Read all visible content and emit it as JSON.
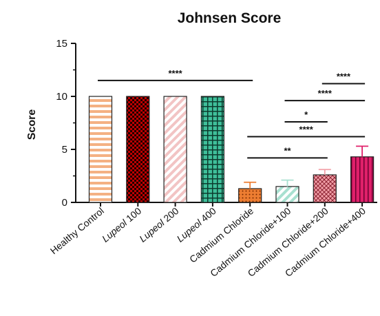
{
  "chart_data": {
    "type": "bar",
    "title": "Johnsen Score",
    "ylabel": "Score",
    "xlabel": "",
    "ylim": [
      0,
      15
    ],
    "yticks": [
      0,
      5,
      10,
      15
    ],
    "grid": false,
    "categories": [
      {
        "label": "Healthy Control",
        "italic_prefix": ""
      },
      {
        "label": "100",
        "italic_prefix": "Lupeol "
      },
      {
        "label": "200",
        "italic_prefix": "Lupeol "
      },
      {
        "label": "400",
        "italic_prefix": "Lupeol "
      },
      {
        "label": "Cadmium Chloride",
        "italic_prefix": ""
      },
      {
        "label": "Cadmium Chloride+100",
        "italic_prefix": ""
      },
      {
        "label": "Cadmium Chloride+200",
        "italic_prefix": ""
      },
      {
        "label": "Cadmium Chloride+400",
        "italic_prefix": ""
      }
    ],
    "values": [
      10,
      10,
      10,
      10,
      1.3,
      1.5,
      2.6,
      4.3
    ],
    "errors": [
      0,
      0,
      0,
      0,
      0.6,
      0.6,
      0.5,
      1.0
    ],
    "bar_colors": [
      "#f4b183",
      "#c00000",
      "#f2c4c4",
      "#3fbf9a",
      "#ed7d31",
      "#a8e0d0",
      "#f2a0a8",
      "#e0206a"
    ],
    "bar_patterns": [
      "hstripe",
      "check",
      "diag",
      "grid",
      "dots",
      "diag2",
      "cross",
      "vstripe"
    ],
    "significance": [
      {
        "from": 0,
        "to": 4,
        "y": 11.5,
        "label": "****"
      },
      {
        "from": 6,
        "to": 7,
        "y": 11.2,
        "label": "****"
      },
      {
        "from": 5,
        "to": 7,
        "y": 9.6,
        "label": "****"
      },
      {
        "from": 5,
        "to": 6,
        "y": 7.6,
        "label": "*"
      },
      {
        "from": 4,
        "to": 7,
        "y": 6.2,
        "label": "****"
      },
      {
        "from": 4,
        "to": 6,
        "y": 4.2,
        "label": "**"
      }
    ]
  }
}
